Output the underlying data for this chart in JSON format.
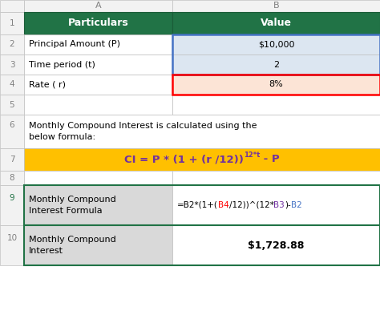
{
  "fig_width": 4.74,
  "fig_height": 3.88,
  "dpi": 100,
  "bg_color": "#ffffff",
  "col_header_color": "#217346",
  "col_header_text_color": "#ffffff",
  "row1_label": "Particulars",
  "row1_value": "Value",
  "rows": [
    {
      "num": "2",
      "label": "Principal Amount (P)",
      "value": "$10,000",
      "label_bg": "#ffffff",
      "value_bg": "#dce6f1"
    },
    {
      "num": "3",
      "label": "Time period (t)",
      "value": "2",
      "label_bg": "#ffffff",
      "value_bg": "#dce6f1"
    },
    {
      "num": "4",
      "label": "Rate ( r)",
      "value": "8%",
      "label_bg": "#ffffff",
      "value_bg": "#fce4d6"
    },
    {
      "num": "5",
      "label": "",
      "value": "",
      "label_bg": "#ffffff",
      "value_bg": "#ffffff"
    }
  ],
  "row6_text": "Monthly Compound Interest is calculated using the\nbelow formula:",
  "row7_bg": "#ffc000",
  "row7_formula_main": "CI = P * (1 + (r /12))",
  "row7_superscript": "12*t",
  "row7_suffix": " - P",
  "row9_label": "Monthly Compound\nInterest Formula",
  "row9_value_parts": [
    {
      "text": "=B2*(1+(",
      "color": "#000000"
    },
    {
      "text": "B4",
      "color": "#ff0000"
    },
    {
      "text": "/12))^(12*",
      "color": "#000000"
    },
    {
      "text": "B3",
      "color": "#7030a0"
    },
    {
      "text": ")-",
      "color": "#000000"
    },
    {
      "text": "B2",
      "color": "#4472c4"
    }
  ],
  "row9_label_bg": "#d9d9d9",
  "row10_label": "Monthly Compound\nInterest",
  "row10_value": "$1,728.88",
  "row10_label_bg": "#d9d9d9",
  "row10_value_bg": "#ffffff",
  "grid_color": "#bfbfbf",
  "row_header_bg": "#f2f2f2",
  "col_header_letters_color": "#808080",
  "blue_border_color": "#4472c4",
  "red_border_color": "#ff0000",
  "green_border_color": "#217346"
}
